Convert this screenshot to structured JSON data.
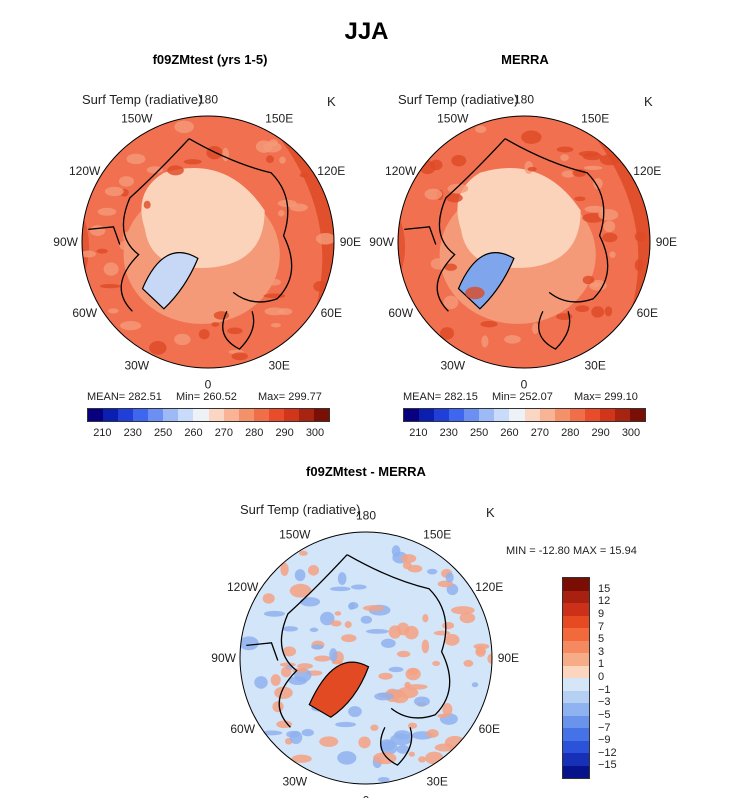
{
  "main_title": "JJA",
  "panels": [
    {
      "title": "f09ZMtest (yrs 1-5)",
      "variable": "Surf Temp (radiative)",
      "units": "K",
      "stats": {
        "mean": "MEAN= 282.51",
        "min": "Min= 260.52",
        "max": "Max= 299.77"
      }
    },
    {
      "title": "MERRA",
      "variable": "Surf Temp (radiative)",
      "units": "K",
      "stats": {
        "mean": "MEAN= 282.15",
        "min": "Min= 252.07",
        "max": "Max= 299.10"
      }
    },
    {
      "title": "f09ZMtest - MERRA",
      "variable": "Surf Temp (radiative)",
      "units": "K",
      "minmax": "MIN = -12.80  MAX =  15.94"
    }
  ],
  "lon_labels": [
    "180",
    "150E",
    "120E",
    "90E",
    "60E",
    "30E",
    "0",
    "30W",
    "60W",
    "90W",
    "120W",
    "150W"
  ],
  "abs_colorbar": {
    "ticks": [
      "210",
      "230",
      "250",
      "260",
      "270",
      "280",
      "290",
      "300"
    ],
    "colors": [
      "#08007f",
      "#0a1fb0",
      "#1f3fd8",
      "#3f66ee",
      "#6b8ff3",
      "#9dbaf6",
      "#c8dbfa",
      "#eef2f6",
      "#fbd6c2",
      "#f8b494",
      "#f5916a",
      "#f06e48",
      "#e84c2a",
      "#d2361a",
      "#a82410",
      "#7a1005"
    ]
  },
  "diff_colorbar": {
    "labels": [
      "15",
      "12",
      "9",
      "7",
      "5",
      "3",
      "1",
      "0",
      "−1",
      "−3",
      "−5",
      "−7",
      "−9",
      "−12",
      "−15"
    ],
    "colors": [
      "#7a0e05",
      "#a82010",
      "#cc3018",
      "#e54a22",
      "#f26a3c",
      "#f58a60",
      "#f7ac88",
      "#fbd5bd",
      "#d4e6f8",
      "#b5d0f3",
      "#8eb3f0",
      "#6a94ec",
      "#4572e6",
      "#2b52d8",
      "#1631b8",
      "#07138a"
    ]
  },
  "map_colors": {
    "warm": "#f07050",
    "warm_dark": "#dd4a26",
    "warm_light": "#f59a78",
    "pale": "#fbd2ba",
    "cold": "#c6d8f5",
    "cold_mid": "#7fa6ec",
    "diff_bg": "#d3e5f8",
    "diff_pos": "#f4a183",
    "diff_neg": "#8eb2ef",
    "diff_hot": "#e14a22"
  }
}
